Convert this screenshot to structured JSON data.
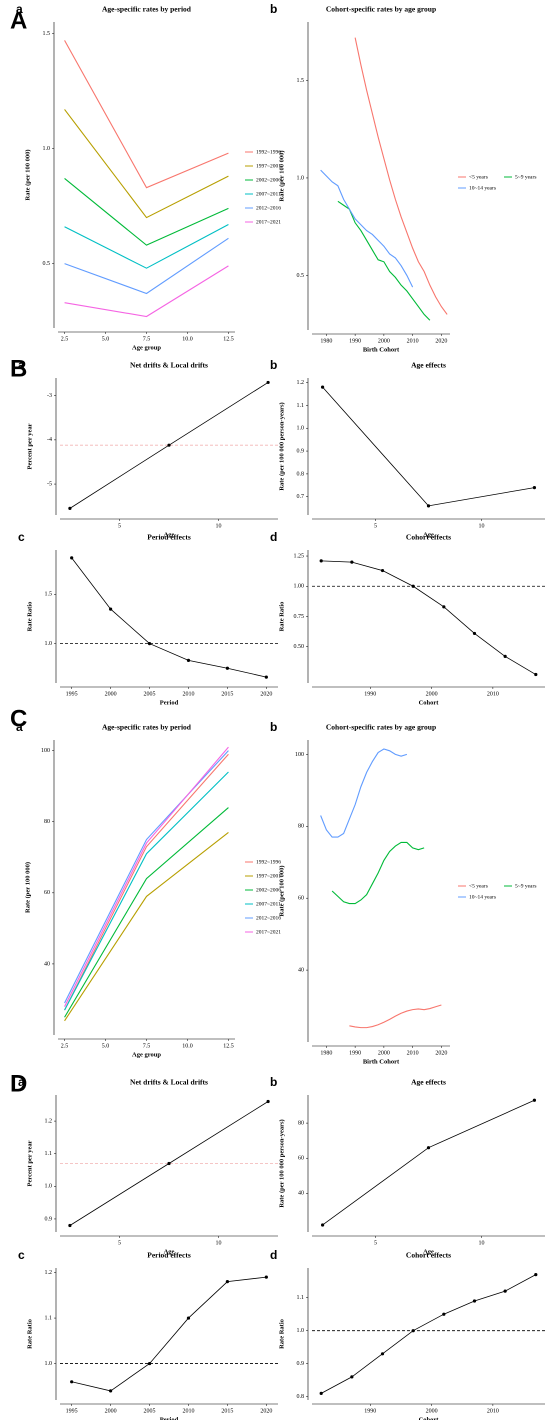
{
  "chart_data": [
    {
      "type": "line",
      "section_label": "A",
      "panel_label": "a",
      "title": "Age-specific rates by period",
      "xlabel": "Age group",
      "ylabel": "Rate (per 100 000)",
      "x": [
        2.5,
        7.5,
        12.5
      ],
      "xlim": [
        2.1,
        12.9
      ],
      "xticks": [
        2.5,
        {
          "value": 5,
          "label": "5.0"
        },
        7.5,
        {
          "value": 10,
          "label": "10.0"
        },
        12.5
      ],
      "ylim": [
        0.22,
        1.55
      ],
      "yticks": [
        0.5,
        {
          "value": 1,
          "label": "1.0"
        },
        1.5
      ],
      "legend": "right",
      "series": [
        {
          "name": "1992~1996",
          "color": "#F8766D",
          "values": [
            1.47,
            0.83,
            0.98
          ]
        },
        {
          "name": "1997~2001",
          "color": "#B79F00",
          "values": [
            1.17,
            0.7,
            0.88
          ]
        },
        {
          "name": "2002~2006",
          "color": "#00BA38",
          "values": [
            0.87,
            0.58,
            0.74
          ]
        },
        {
          "name": "2007~2011",
          "color": "#00BFC4",
          "values": [
            0.66,
            0.48,
            0.67
          ]
        },
        {
          "name": "2012~2016",
          "color": "#619CFF",
          "values": [
            0.5,
            0.37,
            0.61
          ]
        },
        {
          "name": "2017~2021",
          "color": "#F564E3",
          "values": [
            0.33,
            0.27,
            0.49
          ]
        }
      ]
    },
    {
      "type": "line",
      "panel_label": "b",
      "title": "Cohort-specific rates by age group",
      "xlabel": "Birth Cohort",
      "ylabel": "Rate (per 100 000)",
      "x": [
        1978,
        1980,
        1982,
        1984,
        1986,
        1988,
        1990,
        1992,
        1994,
        1996,
        1998,
        2000,
        2002,
        2004,
        2006,
        2008,
        2010,
        2012,
        2014,
        2016,
        2018,
        2020,
        2022
      ],
      "xlim": [
        1975,
        2023
      ],
      "xticks": [
        1980,
        1990,
        2000,
        2010,
        2020
      ],
      "ylim": [
        0.22,
        1.8
      ],
      "yticks": [
        0.5,
        {
          "value": 1,
          "label": "1.0"
        },
        1.5
      ],
      "legend": "right",
      "series": [
        {
          "name": "<5 years",
          "color": "#F8766D",
          "values": [
            null,
            null,
            null,
            null,
            null,
            null,
            1.72,
            1.58,
            1.45,
            1.33,
            1.21,
            1.1,
            0.99,
            0.89,
            0.8,
            0.72,
            0.64,
            0.57,
            0.52,
            0.45,
            0.39,
            0.34,
            0.3
          ]
        },
        {
          "name": "5~9 years",
          "color": "#00BA38",
          "values": [
            null,
            null,
            null,
            0.88,
            0.86,
            0.84,
            0.77,
            0.73,
            0.68,
            0.63,
            0.58,
            0.57,
            0.52,
            0.49,
            0.45,
            0.42,
            0.38,
            0.34,
            0.3,
            0.27,
            null,
            null,
            null
          ]
        },
        {
          "name": "10~14 years",
          "color": "#619CFF",
          "values": [
            1.04,
            1.01,
            0.98,
            0.96,
            0.89,
            0.84,
            0.79,
            0.76,
            0.73,
            0.71,
            0.68,
            0.65,
            0.61,
            0.59,
            0.55,
            0.5,
            0.44,
            null,
            null,
            null,
            null,
            null,
            null
          ]
        }
      ]
    },
    {
      "type": "line",
      "section_label": "B",
      "panel_label": "a",
      "title": "Net drifts & Local drifts",
      "xlabel": "Age",
      "ylabel": "Percent per year",
      "x": [
        2.5,
        7.5,
        12.5
      ],
      "xlim": [
        2,
        13
      ],
      "xticks": [
        5,
        10
      ],
      "ylim": [
        -5.7,
        -2.6
      ],
      "yticks": [
        -5,
        -4,
        -3
      ],
      "values": [
        -5.55,
        -4.12,
        -2.7
      ],
      "color": "#000000",
      "markers": true,
      "hline": {
        "value": -4.12,
        "color": "#f2b3b3"
      }
    },
    {
      "type": "line",
      "panel_label": "b",
      "title": "Age effects",
      "xlabel": "Age",
      "ylabel": "Rate (per 100 000 person-years)",
      "x": [
        2.5,
        7.5,
        12.5
      ],
      "xlim": [
        2,
        13
      ],
      "xticks": [
        5,
        10
      ],
      "ylim": [
        0.62,
        1.22
      ],
      "yticks": [
        0.7,
        0.8,
        0.9,
        {
          "value": 1,
          "label": "1.0"
        },
        1.1,
        1.2
      ],
      "values": [
        1.18,
        0.66,
        0.74
      ],
      "color": "#000000",
      "markers": true
    },
    {
      "type": "line",
      "panel_label": "c",
      "title": "Period effects",
      "xlabel": "Period",
      "ylabel": "Rate Ratio",
      "x": [
        1995,
        2000,
        2005,
        2010,
        2015,
        2020
      ],
      "xlim": [
        1993.5,
        2021.5
      ],
      "xticks": [
        1995,
        2000,
        2005,
        2010,
        2015,
        2020
      ],
      "ylim": [
        0.6,
        1.95
      ],
      "yticks": [
        {
          "value": 1,
          "label": "1.0"
        },
        1.5
      ],
      "values": [
        1.87,
        1.35,
        1.0,
        0.83,
        0.75,
        0.66
      ],
      "color": "#000000",
      "markers": true,
      "hline": {
        "value": 1,
        "color": "#000000"
      }
    },
    {
      "type": "line",
      "panel_label": "d",
      "title": "Cohort effects",
      "xlabel": "Cohort",
      "ylabel": "Rate Ratio",
      "x": [
        1982,
        1987,
        1992,
        1997,
        2002,
        2007,
        2012,
        2017
      ],
      "xlim": [
        1980.5,
        2018.5
      ],
      "xticks": [
        1990,
        2000,
        2010
      ],
      "ylim": [
        0.2,
        1.3
      ],
      "yticks": [
        {
          "value": 0.5,
          "label": "0.50"
        },
        0.75,
        {
          "value": 1,
          "label": "1.00"
        },
        1.25
      ],
      "values": [
        1.21,
        1.2,
        1.13,
        1.0,
        0.83,
        0.61,
        0.42,
        0.27
      ],
      "color": "#000000",
      "markers": true,
      "hline": {
        "value": 1,
        "color": "#000000"
      }
    },
    {
      "type": "line",
      "section_label": "C",
      "panel_label": "a",
      "title": "Age-specific rates by period",
      "xlabel": "Age group",
      "ylabel": "Rate (per 100 000)",
      "x": [
        2.5,
        7.5,
        12.5
      ],
      "xlim": [
        2.1,
        12.9
      ],
      "xticks": [
        2.5,
        {
          "value": 5,
          "label": "5.0"
        },
        7.5,
        {
          "value": 10,
          "label": "10.0"
        },
        12.5
      ],
      "ylim": [
        20,
        103
      ],
      "yticks": [
        40,
        60,
        80,
        100
      ],
      "legend": "right",
      "series": [
        {
          "name": "1992~1996",
          "color": "#F8766D",
          "values": [
            27,
            73,
            99
          ]
        },
        {
          "name": "1997~2001",
          "color": "#B79F00",
          "values": [
            24,
            59,
            77
          ]
        },
        {
          "name": "2002~2006",
          "color": "#00BA38",
          "values": [
            25,
            64,
            84
          ]
        },
        {
          "name": "2007~2011",
          "color": "#00BFC4",
          "values": [
            27,
            71,
            94
          ]
        },
        {
          "name": "2012~2016",
          "color": "#619CFF",
          "values": [
            29,
            75,
            100
          ]
        },
        {
          "name": "2017~2021",
          "color": "#F564E3",
          "values": [
            28,
            74,
            101
          ]
        }
      ]
    },
    {
      "type": "line",
      "panel_label": "b",
      "title": "Cohort-specific rates by age group",
      "xlabel": "Birth Cohort",
      "ylabel": "Rate (per 100 000)",
      "x": [
        1978,
        1980,
        1982,
        1984,
        1986,
        1988,
        1990,
        1992,
        1994,
        1996,
        1998,
        2000,
        2002,
        2004,
        2006,
        2008,
        2010,
        2012,
        2014,
        2016,
        2018,
        2020,
        2022
      ],
      "xlim": [
        1975,
        2023
      ],
      "xticks": [
        1980,
        1990,
        2000,
        2010,
        2020
      ],
      "ylim": [
        20,
        104
      ],
      "yticks": [
        40,
        60,
        80,
        100
      ],
      "legend": "right",
      "series": [
        {
          "name": "<5 years",
          "color": "#F8766D",
          "values": [
            null,
            null,
            null,
            null,
            null,
            24.5,
            24.2,
            24.0,
            24.0,
            24.3,
            24.8,
            25.5,
            26.3,
            27.2,
            28.0,
            28.6,
            29.0,
            29.2,
            29.0,
            29.3,
            29.8,
            30.3,
            null
          ]
        },
        {
          "name": "5~9 years",
          "color": "#00BA38",
          "values": [
            null,
            null,
            62,
            60.5,
            59,
            58.5,
            58.5,
            59.5,
            61,
            64,
            67,
            70.5,
            73,
            74.5,
            75.5,
            75.5,
            74,
            73.5,
            74,
            null,
            null,
            null,
            null
          ]
        },
        {
          "name": "10~14 years",
          "color": "#619CFF",
          "values": [
            83,
            79,
            77,
            77,
            78,
            82,
            86,
            91,
            95,
            98,
            100.5,
            101.5,
            101,
            100,
            99.5,
            100,
            null,
            null,
            null,
            null,
            null,
            null,
            null
          ]
        }
      ]
    },
    {
      "type": "line",
      "section_label": "D",
      "panel_label": "a",
      "title": "Net drifts & Local drifts",
      "xlabel": "Age",
      "ylabel": "Percent per year",
      "x": [
        2.5,
        7.5,
        12.5
      ],
      "xlim": [
        2,
        13
      ],
      "xticks": [
        5,
        10
      ],
      "ylim": [
        0.86,
        1.28
      ],
      "yticks": [
        0.9,
        {
          "value": 1,
          "label": "1.0"
        },
        1.1,
        1.2
      ],
      "values": [
        0.88,
        1.07,
        1.26
      ],
      "color": "#000000",
      "markers": true,
      "hline": {
        "value": 1.07,
        "color": "#f2b3b3"
      }
    },
    {
      "type": "line",
      "panel_label": "b",
      "title": "Age effects",
      "xlabel": "Age",
      "ylabel": "Rate (per 100 000 person-years)",
      "x": [
        2.5,
        7.5,
        12.5
      ],
      "xlim": [
        2,
        13
      ],
      "xticks": [
        5,
        10
      ],
      "ylim": [
        18,
        96
      ],
      "yticks": [
        40,
        60,
        80
      ],
      "values": [
        22,
        66,
        93
      ],
      "color": "#000000",
      "markers": true
    },
    {
      "type": "line",
      "panel_label": "c",
      "title": "Period effects",
      "xlabel": "Period",
      "ylabel": "Rate Ratio",
      "x": [
        1995,
        2000,
        2005,
        2010,
        2015,
        2020
      ],
      "xlim": [
        1993.5,
        2021.5
      ],
      "xticks": [
        1995,
        2000,
        2005,
        2010,
        2015,
        2020
      ],
      "ylim": [
        0.92,
        1.21
      ],
      "yticks": [
        {
          "value": 1,
          "label": "1.0"
        },
        1.1,
        1.2
      ],
      "values": [
        0.96,
        0.94,
        1.0,
        1.1,
        1.18,
        1.19
      ],
      "color": "#000000",
      "markers": true,
      "hline": {
        "value": 1,
        "color": "#000000"
      }
    },
    {
      "type": "line",
      "panel_label": "d",
      "title": "Cohort effects",
      "xlabel": "Cohort",
      "ylabel": "Rate Ratio",
      "x": [
        1982,
        1987,
        1992,
        1997,
        2002,
        2007,
        2012,
        2017
      ],
      "xlim": [
        1980.5,
        2018.5
      ],
      "xticks": [
        1990,
        2000,
        2010
      ],
      "ylim": [
        0.79,
        1.19
      ],
      "yticks": [
        0.8,
        0.9,
        {
          "value": 1,
          "label": "1.0"
        },
        1.1
      ],
      "values": [
        0.81,
        0.86,
        0.93,
        1.0,
        1.05,
        1.09,
        1.12,
        1.17
      ],
      "color": "#000000",
      "markers": true,
      "hline": {
        "value": 1,
        "color": "#000000"
      }
    }
  ]
}
